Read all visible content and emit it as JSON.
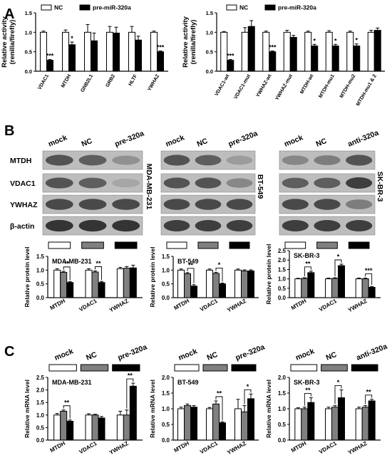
{
  "panel_letters": {
    "a": "A",
    "b": "B",
    "c": "C"
  },
  "colors": {
    "nc": "#ffffff",
    "mid": "#808080",
    "treat": "#000000"
  },
  "chart_data": [
    {
      "id": "a1",
      "type": "bar",
      "panel": "A",
      "ylabel": "Relative  activity\n(renilla/firefly)",
      "ylim": [
        0,
        1.5
      ],
      "yticks": [
        "0.0",
        "0.5",
        "1.0",
        "1.5"
      ],
      "tickvals": [
        0,
        0.5,
        1,
        1.5
      ],
      "categories": [
        "VDAC1",
        "MTDH",
        "GNB2L1",
        "GRB2",
        "HLTF",
        "YWHAZ"
      ],
      "legend": [
        "NC",
        "pre-miR-320a"
      ],
      "series": [
        {
          "name": "NC",
          "values": [
            1.0,
            1.0,
            1.0,
            1.0,
            1.0,
            1.0
          ],
          "err": [
            0.03,
            0.06,
            0.2,
            0.15,
            0.15,
            0.03
          ],
          "color": "#ffffff"
        },
        {
          "name": "pre-miR-320a",
          "values": [
            0.28,
            0.68,
            0.78,
            0.98,
            0.8,
            0.5
          ],
          "err": [
            0.02,
            0.07,
            0.2,
            0.15,
            0.1,
            0.02
          ],
          "color": "#000000"
        }
      ],
      "annotations": [
        "***",
        "*",
        "",
        "",
        "",
        "***"
      ]
    },
    {
      "id": "a2",
      "type": "bar",
      "panel": "A",
      "ylabel": "Relative  activity\n(renilla/firefly)",
      "ylim": [
        0,
        1.5
      ],
      "yticks": [
        "0.0",
        "0.5",
        "1.0",
        "1.5"
      ],
      "tickvals": [
        0,
        0.5,
        1,
        1.5
      ],
      "categories": [
        "VDAC1-wt",
        "VDAC1-mut",
        "YWHAZ-wt",
        "YWHAZ-mut",
        "MTDH-wt",
        "MTDH-mu1",
        "MTDH-mu2",
        "MTDH-mu1 & 2"
      ],
      "legend": [
        "NC",
        "pre-miR-320a"
      ],
      "series": [
        {
          "name": "NC",
          "values": [
            1.0,
            1.0,
            1.0,
            1.0,
            1.0,
            1.0,
            1.0,
            1.0
          ],
          "err": [
            0.02,
            0.12,
            0.03,
            0.05,
            0.03,
            0.04,
            0.03,
            0.05
          ],
          "color": "#ffffff"
        },
        {
          "name": "pre-miR-320a",
          "values": [
            0.28,
            1.15,
            0.5,
            0.87,
            0.65,
            0.65,
            0.65,
            1.05
          ],
          "err": [
            0.02,
            0.15,
            0.02,
            0.05,
            0.04,
            0.04,
            0.05,
            0.06
          ],
          "color": "#000000"
        }
      ],
      "annotations": [
        "***",
        "",
        "***",
        "",
        "*",
        "*",
        "*",
        ""
      ]
    },
    {
      "id": "b1",
      "type": "bar",
      "panel": "B",
      "title": "MDA-MB-231",
      "ylabel": "Relative protein level",
      "ylim": [
        0,
        1.5
      ],
      "yticks": [
        "0.0",
        "0.5",
        "1.0",
        "1.5"
      ],
      "tickvals": [
        0,
        0.5,
        1,
        1.5
      ],
      "categories": [
        "MTDH",
        "VDAC1",
        "YWHAZ"
      ],
      "series": [
        {
          "name": "mock",
          "values": [
            1.0,
            1.0,
            1.05
          ],
          "err": [
            0.05,
            0.05,
            0.05
          ],
          "color": "#ffffff"
        },
        {
          "name": "NC",
          "values": [
            0.92,
            0.93,
            1.07
          ],
          "err": [
            0.04,
            0.04,
            0.06
          ],
          "color": "#808080"
        },
        {
          "name": "pre-320a",
          "values": [
            0.55,
            0.55,
            1.08
          ],
          "err": [
            0.03,
            0.04,
            0.1
          ],
          "color": "#000000"
        }
      ],
      "annotations": [
        "**",
        "**",
        ""
      ]
    },
    {
      "id": "b2",
      "type": "bar",
      "panel": "B",
      "title": "BT-549",
      "ylabel": "Relative protein level",
      "ylim": [
        0,
        1.5
      ],
      "yticks": [
        "0.0",
        "0.5",
        "1.0",
        "1.5"
      ],
      "tickvals": [
        0,
        0.5,
        1,
        1.5
      ],
      "categories": [
        "MTDH",
        "VDAC1",
        "YWHAZ"
      ],
      "series": [
        {
          "name": "mock",
          "values": [
            1.0,
            1.0,
            1.0
          ],
          "err": [
            0.04,
            0.04,
            0.04
          ],
          "color": "#ffffff"
        },
        {
          "name": "NC",
          "values": [
            0.87,
            0.88,
            0.97
          ],
          "err": [
            0.04,
            0.04,
            0.04
          ],
          "color": "#808080"
        },
        {
          "name": "pre-320a",
          "values": [
            0.42,
            0.5,
            0.97
          ],
          "err": [
            0.05,
            0.03,
            0.04
          ],
          "color": "#000000"
        }
      ],
      "annotations": [
        "**",
        "*",
        ""
      ]
    },
    {
      "id": "b3",
      "type": "bar",
      "panel": "B",
      "title": "SK-BR-3",
      "ylabel": "Relative protein level",
      "ylim": [
        0,
        2.5
      ],
      "yticks": [
        "0.0",
        "0.5",
        "1.0",
        "1.5",
        "2.0",
        "2.5"
      ],
      "tickvals": [
        0,
        0.5,
        1,
        1.5,
        2,
        2.5
      ],
      "categories": [
        "MTDH",
        "VDAC1",
        "YWHAZ"
      ],
      "series": [
        {
          "name": "mock",
          "values": [
            1.0,
            1.0,
            1.0
          ],
          "err": [
            0.03,
            0.04,
            0.04
          ],
          "color": "#ffffff"
        },
        {
          "name": "NC",
          "values": [
            1.02,
            1.02,
            1.0
          ],
          "err": [
            0.04,
            0.04,
            0.04
          ],
          "color": "#808080"
        },
        {
          "name": "anti-320a",
          "values": [
            1.33,
            1.7,
            0.55
          ],
          "err": [
            0.08,
            0.08,
            0.04
          ],
          "color": "#000000"
        }
      ],
      "annotations": [
        "**",
        "*",
        "***"
      ]
    },
    {
      "id": "c1",
      "type": "bar",
      "panel": "C",
      "title": "MDA-MB-231",
      "ylabel": "Relative mRNA level",
      "ylim": [
        0,
        2.5
      ],
      "yticks": [
        "0.0",
        "0.5",
        "1.0",
        "1.5",
        "2.0",
        "2.5"
      ],
      "tickvals": [
        0,
        0.5,
        1,
        1.5,
        2,
        2.5
      ],
      "categories": [
        "MTDH",
        "VDAC1",
        "YWHAZ"
      ],
      "series": [
        {
          "name": "mock",
          "values": [
            1.0,
            1.0,
            1.0
          ],
          "err": [
            0.06,
            0.05,
            0.15
          ],
          "color": "#ffffff"
        },
        {
          "name": "NC",
          "values": [
            1.15,
            1.0,
            1.0
          ],
          "err": [
            0.05,
            0.03,
            0.2
          ],
          "color": "#808080"
        },
        {
          "name": "pre-320a",
          "values": [
            0.75,
            0.88,
            2.15
          ],
          "err": [
            0.05,
            0.06,
            0.12
          ],
          "color": "#000000"
        }
      ],
      "annotations": [
        "**",
        "",
        "**"
      ]
    },
    {
      "id": "c2",
      "type": "bar",
      "panel": "C",
      "title": "BT-549",
      "ylabel": "Relative mRNA level",
      "ylim": [
        0,
        2.0
      ],
      "yticks": [
        "0.0",
        "0.5",
        "1.0",
        "1.5",
        "2.0"
      ],
      "tickvals": [
        0,
        0.5,
        1,
        1.5,
        2
      ],
      "categories": [
        "MTDH",
        "VDAC1",
        "YWHAZ"
      ],
      "series": [
        {
          "name": "mock",
          "values": [
            1.0,
            1.0,
            1.0
          ],
          "err": [
            0.05,
            0.04,
            0.3
          ],
          "color": "#ffffff"
        },
        {
          "name": "NC",
          "values": [
            1.1,
            1.15,
            0.9
          ],
          "err": [
            0.05,
            0.1,
            0.2
          ],
          "color": "#808080"
        },
        {
          "name": "pre-320a",
          "values": [
            1.05,
            0.55,
            1.32
          ],
          "err": [
            0.05,
            0.03,
            0.15
          ],
          "color": "#000000"
        }
      ],
      "annotations": [
        "",
        "**",
        "*"
      ]
    },
    {
      "id": "c3",
      "type": "bar",
      "panel": "C",
      "title": "SK-BR-3",
      "ylabel": "Relative mRNA level",
      "ylim": [
        0,
        2.0
      ],
      "yticks": [
        "0.0",
        "0.5",
        "1.0",
        "1.5",
        "2.0"
      ],
      "tickvals": [
        0,
        0.5,
        1,
        1.5,
        2
      ],
      "categories": [
        "MTDH",
        "VDAC1",
        "YWHAZ"
      ],
      "series": [
        {
          "name": "mock",
          "values": [
            1.0,
            1.0,
            1.0
          ],
          "err": [
            0.03,
            0.05,
            0.05
          ],
          "color": "#ffffff"
        },
        {
          "name": "NC",
          "values": [
            1.0,
            1.05,
            1.05
          ],
          "err": [
            0.05,
            0.05,
            0.05
          ],
          "color": "#808080"
        },
        {
          "name": "anti-320a",
          "values": [
            1.2,
            1.35,
            1.25
          ],
          "err": [
            0.15,
            0.25,
            0.05
          ],
          "color": "#000000"
        }
      ],
      "annotations": [
        "**",
        "*",
        "**"
      ]
    }
  ],
  "blots": [
    {
      "id": "blot1",
      "cell_line": "MDA-MB-231",
      "lanes": [
        "mock",
        "NC",
        "pre-320a"
      ],
      "rows": [
        "MTDH",
        "VDAC1",
        "YWHAZ",
        "β-actin"
      ],
      "intensity": [
        [
          0.8,
          0.75,
          0.5
        ],
        [
          0.8,
          0.75,
          0.4
        ],
        [
          0.85,
          0.85,
          0.85
        ],
        [
          0.95,
          0.95,
          0.95
        ]
      ]
    },
    {
      "id": "blot2",
      "cell_line": "BT-549",
      "lanes": [
        "mock",
        "NC",
        "pre-320a"
      ],
      "intensity": [
        [
          0.8,
          0.75,
          0.45
        ],
        [
          0.8,
          0.8,
          0.55
        ],
        [
          0.85,
          0.85,
          0.85
        ],
        [
          0.9,
          0.9,
          0.9
        ]
      ]
    },
    {
      "id": "blot3",
      "cell_line": "SK-BR-3",
      "lanes": [
        "mock",
        "NC",
        "anti-320a"
      ],
      "intensity": [
        [
          0.55,
          0.6,
          0.8
        ],
        [
          0.75,
          0.75,
          0.9
        ],
        [
          0.85,
          0.85,
          0.6
        ],
        [
          0.9,
          0.9,
          0.9
        ]
      ]
    }
  ],
  "lane_legends": {
    "b": [
      [
        "mock",
        "NC",
        "pre-320a"
      ],
      [
        "mock",
        "NC",
        "pre-320a"
      ],
      [
        "mock",
        "NC",
        "anti-320a"
      ]
    ],
    "c": [
      [
        "mock",
        "NC",
        "pre-320a"
      ],
      [
        "mock",
        "NC",
        "pre-320a"
      ],
      [
        "mock",
        "NC",
        "anti-320a"
      ]
    ]
  }
}
